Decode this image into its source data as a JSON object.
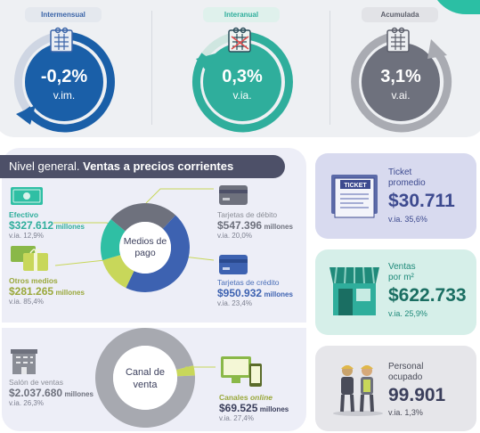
{
  "variations": [
    {
      "tab": "Intermensual",
      "value": "-0,2%",
      "unit": "v.im.",
      "ring_color": "#1a5fa8",
      "tab_color": "#3a64a8"
    },
    {
      "tab": "Interanual",
      "value": "0,3%",
      "unit": "v.ia.",
      "ring_color": "#2fae9c",
      "tab_color": "#2fae9c"
    },
    {
      "tab": "Acumulada",
      "value": "3,1%",
      "unit": "v.ai.",
      "ring_color": "#6e717d",
      "tab_color": "#5c5f6b"
    }
  ],
  "headline": {
    "prefix": "Nivel general.",
    "bold": "Ventas a precios corrientes"
  },
  "payment": {
    "center_label": "Medios de pago",
    "items": [
      {
        "name": "Efectivo",
        "value": "$327.612",
        "unit": "millones",
        "yoy": "v.ia. 12,9%",
        "color": "#2fbfa4"
      },
      {
        "name": "Otros medios",
        "value": "$281.265",
        "unit": "millones",
        "yoy": "v.ia. 85,4%",
        "color": "#c8d75a"
      },
      {
        "name": "Tarjetas de débito",
        "value": "$547.396",
        "unit": "millones",
        "yoy": "v.ia. 20,0%",
        "color": "#6e717d"
      },
      {
        "name": "Tarjetas de crédito",
        "value": "$950.932",
        "unit": "millones",
        "yoy": "v.ia. 23,4%",
        "color": "#3d62b1"
      }
    ]
  },
  "channel": {
    "center_label": "Canal de venta",
    "items": [
      {
        "name": "Salón de ventas",
        "value": "$2.037.680",
        "unit": "millones",
        "yoy": "v.ia. 26,3%",
        "color": "#a7a9b0"
      },
      {
        "name": "Canales",
        "name_suffix": "online",
        "value": "$69.525",
        "unit": "millones",
        "yoy": "v.ia. 27,4%",
        "color": "#c8d75a"
      }
    ]
  },
  "cards": [
    {
      "title_line1": "Ticket",
      "title_line2": "promedio",
      "value": "$30.711",
      "yoy": "v.ia. 35,6%",
      "bg": "#d8daef",
      "accent": "#3d4a8f",
      "icon": "ticket-icon",
      "icon_label": "TICKET"
    },
    {
      "title_line1": "Ventas",
      "title_line2": "por m²",
      "value": "$622.733",
      "yoy": "v.ia. 25,9%",
      "bg": "#d6efe9",
      "accent": "#1f8a7a",
      "icon": "store-icon"
    },
    {
      "title_line1": "Personal",
      "title_line2": "ocupado",
      "value": "99.901",
      "yoy": "v.ia. 1,3%",
      "bg": "#e6e6ea",
      "accent": "#4a4c59",
      "icon": "workers-icon"
    }
  ]
}
